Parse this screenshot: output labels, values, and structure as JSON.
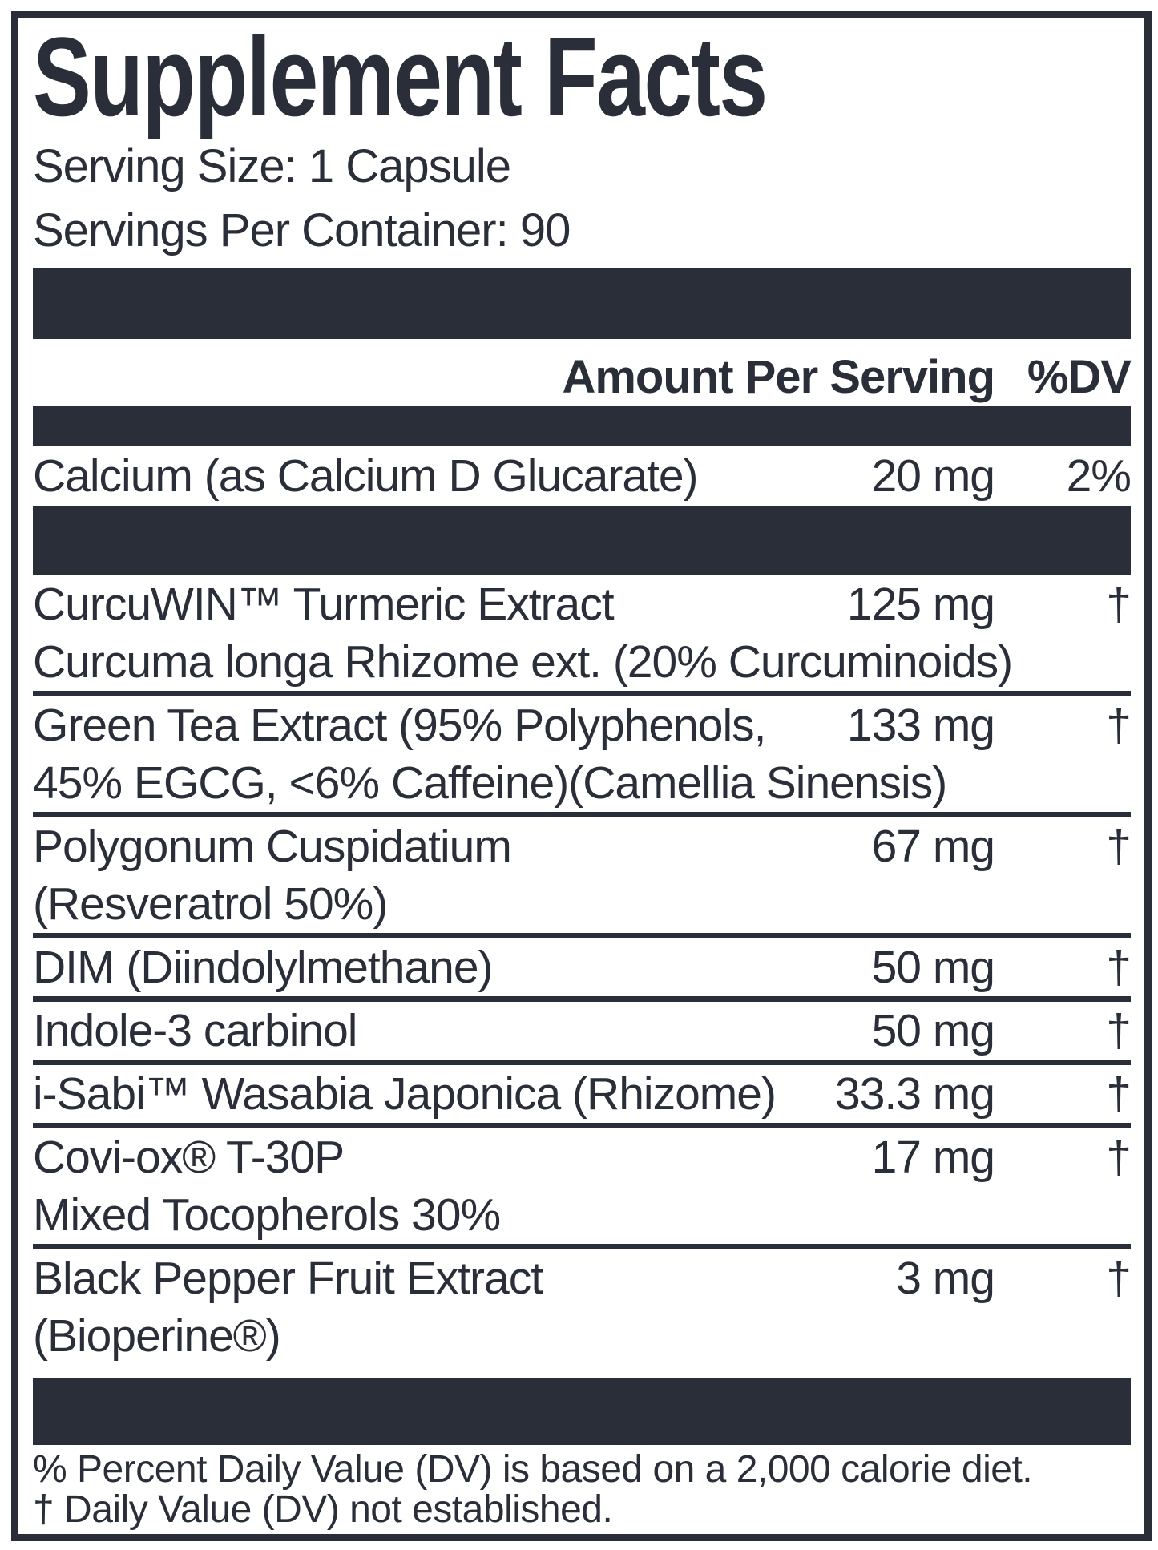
{
  "colors": {
    "ink": "#2a2e38",
    "background": "#ffffff"
  },
  "label": {
    "title": "Supplement Facts",
    "serving_size": "Serving Size: 1 Capsule",
    "servings_per_container": "Servings Per Container: 90",
    "columns": {
      "amount": "Amount Per Serving",
      "dv": "%DV"
    },
    "rows": [
      {
        "name": "Calcium (as Calcium D Glucarate)",
        "amount": "20 mg",
        "dv": "2%"
      },
      {
        "name": "CurcuWIN™ Turmeric Extract",
        "amount": "125 mg",
        "dv": "†",
        "name2": "Curcuma longa Rhizome ext. (20% Curcuminoids)"
      },
      {
        "name": "Green Tea Extract (95% Polyphenols,",
        "amount": "133 mg",
        "dv": "†",
        "name2": "45% EGCG, <6% Caffeine)(Camellia Sinensis)"
      },
      {
        "name": "Polygonum Cuspidatium",
        "amount": "67 mg",
        "dv": "†",
        "name2": "(Resveratrol 50%)"
      },
      {
        "name": "DIM (Diindolylmethane)",
        "amount": "50 mg",
        "dv": "†"
      },
      {
        "name": "Indole-3 carbinol",
        "amount": "50 mg",
        "dv": "†"
      },
      {
        "name": "i-Sabi™ Wasabia Japonica (Rhizome)",
        "amount": "33.3 mg",
        "dv": "†"
      },
      {
        "name": "Covi-ox® T-30P",
        "amount": "17 mg",
        "dv": "†",
        "name2": "Mixed Tocopherols 30%"
      },
      {
        "name": "Black Pepper Fruit Extract",
        "amount": "3 mg",
        "dv": "†",
        "name2": "(Bioperine®)"
      }
    ],
    "footnotes": [
      "% Percent Daily Value (DV) is based on a 2,000 calorie diet.",
      "† Daily Value (DV) not established."
    ]
  }
}
